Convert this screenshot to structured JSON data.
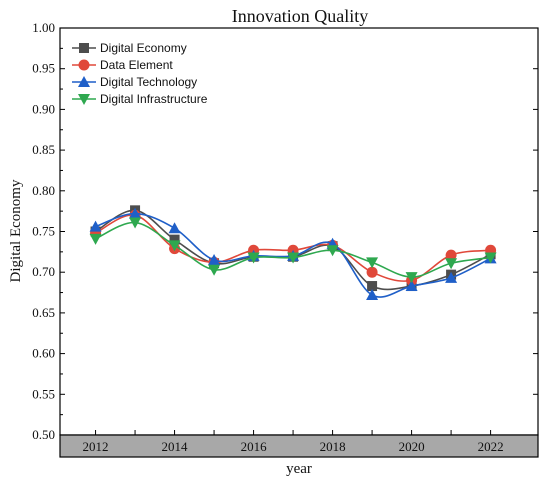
{
  "chart_data": {
    "type": "line",
    "title": "Innovation Quality",
    "xlabel": "year",
    "ylabel": "Digital Economy",
    "x": [
      2012,
      2013,
      2014,
      2015,
      2016,
      2017,
      2018,
      2019,
      2020,
      2021,
      2022
    ],
    "xticks": [
      "2012",
      "2014",
      "2016",
      "2018",
      "2020",
      "2022"
    ],
    "xlim": [
      2011.1,
      2023.2
    ],
    "ylim": [
      0.5,
      1.0
    ],
    "yticks": [
      "0.50",
      "0.55",
      "0.60",
      "0.65",
      "0.70",
      "0.75",
      "0.80",
      "0.85",
      "0.90",
      "0.95",
      "1.00"
    ],
    "grid": false,
    "legend_position": "top-left",
    "series": [
      {
        "name": "Digital Economy",
        "color": "#4d4d4d",
        "marker": "square",
        "values": [
          0.75,
          0.776,
          0.74,
          0.711,
          0.719,
          0.719,
          0.732,
          0.683,
          0.683,
          0.697,
          0.722
        ]
      },
      {
        "name": "Data Element",
        "color": "#e0483a",
        "marker": "circle",
        "values": [
          0.748,
          0.77,
          0.729,
          0.712,
          0.727,
          0.727,
          0.733,
          0.7,
          0.69,
          0.721,
          0.727
        ]
      },
      {
        "name": "Digital Technology",
        "color": "#1f5fc8",
        "marker": "triangle-up",
        "values": [
          0.756,
          0.772,
          0.754,
          0.715,
          0.72,
          0.72,
          0.735,
          0.672,
          0.683,
          0.693,
          0.717
        ]
      },
      {
        "name": "Digital Infrastructure",
        "color": "#2ea84f",
        "marker": "triangle-down",
        "values": [
          0.741,
          0.761,
          0.733,
          0.703,
          0.718,
          0.718,
          0.727,
          0.712,
          0.694,
          0.711,
          0.718
        ]
      }
    ]
  }
}
